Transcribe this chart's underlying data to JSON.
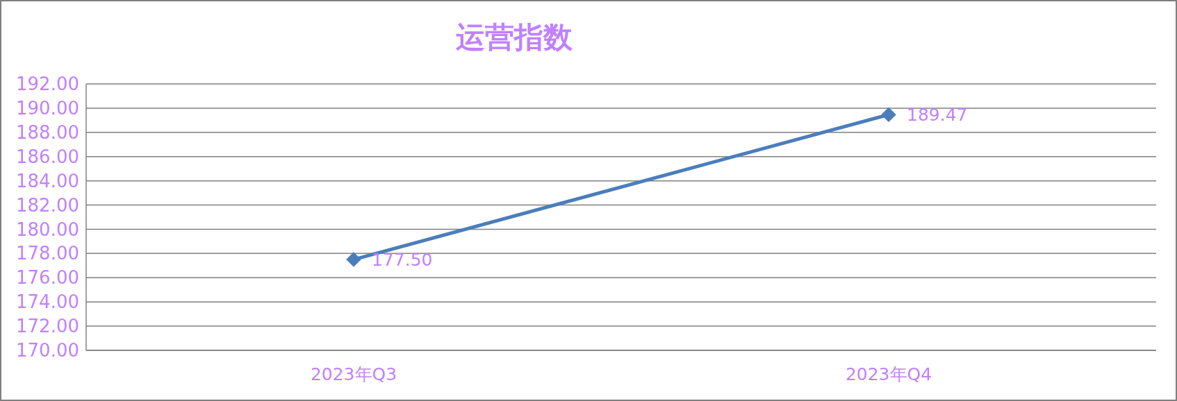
{
  "chart_data": {
    "type": "line",
    "title": "运营指数",
    "categories": [
      "2023年Q3",
      "2023年Q4"
    ],
    "series": [
      {
        "color": "#4a7ebb",
        "values": [
          177.5,
          189.47
        ]
      }
    ],
    "value_labels": [
      "177.50",
      "189.47"
    ],
    "ylim": [
      170,
      192
    ],
    "yticks": [
      {
        "value": 170,
        "label": "170.00"
      },
      {
        "value": 172,
        "label": "172.00"
      },
      {
        "value": 174,
        "label": "174.00"
      },
      {
        "value": 176,
        "label": "176.00"
      },
      {
        "value": 178,
        "label": "178.00"
      },
      {
        "value": 180,
        "label": "180.00"
      },
      {
        "value": 182,
        "label": "182.00"
      },
      {
        "value": 184,
        "label": "184.00"
      },
      {
        "value": 186,
        "label": "186.00"
      },
      {
        "value": 188,
        "label": "188.00"
      },
      {
        "value": 190,
        "label": "190.00"
      },
      {
        "value": 192,
        "label": "192.00"
      }
    ],
    "grid": "y",
    "marker": "diamond",
    "line_style": "solid"
  }
}
